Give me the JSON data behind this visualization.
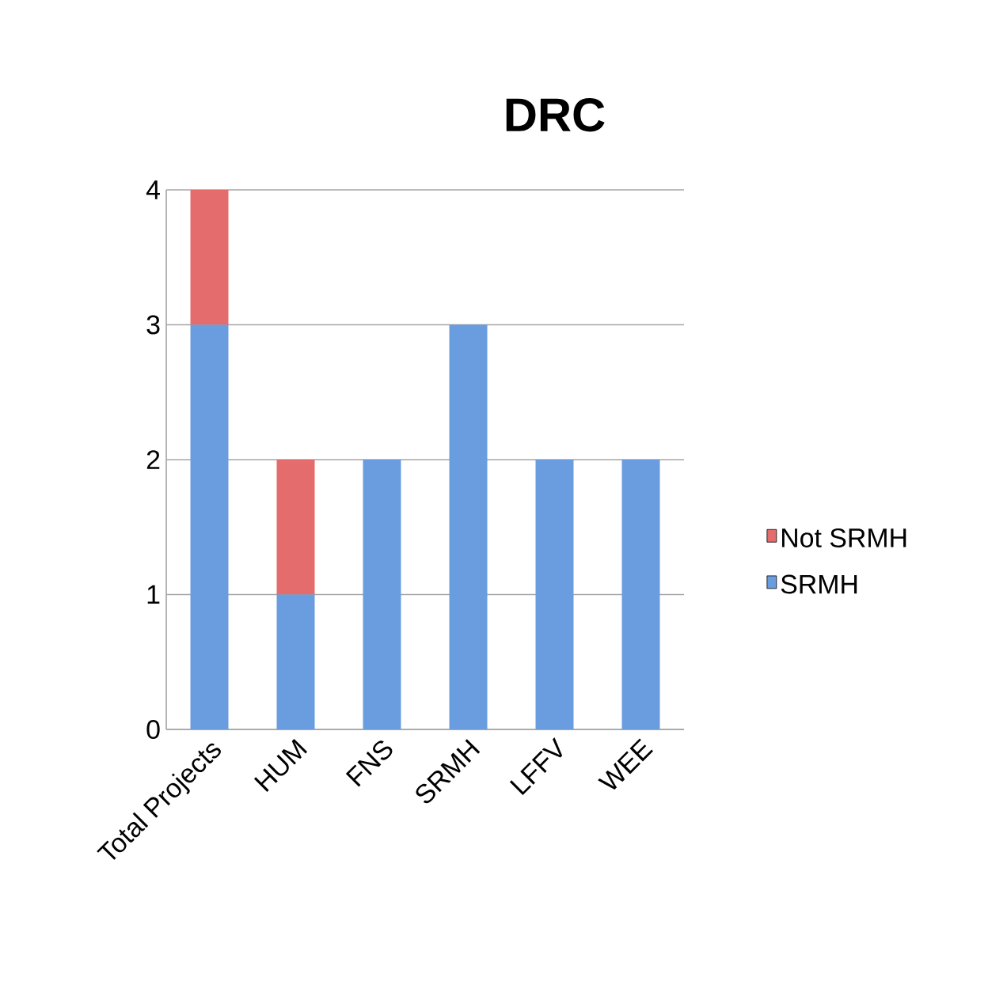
{
  "chart_data": {
    "type": "bar",
    "stacked": true,
    "title": "DRC",
    "categories": [
      "Total Projects",
      "HUM",
      "FNS",
      "SRMH",
      "LFFV",
      "WEE"
    ],
    "series": [
      {
        "name": "SRMH",
        "color": "#6a9de0",
        "values": [
          3,
          1,
          2,
          3,
          2,
          2
        ]
      },
      {
        "name": "Not SRMH",
        "color": "#e46c6c",
        "values": [
          1,
          1,
          0,
          0,
          0,
          0
        ]
      }
    ],
    "ylim": [
      0,
      4
    ],
    "yticks": [
      0,
      1,
      2,
      3,
      4
    ],
    "grid": "y",
    "legend": "right"
  }
}
